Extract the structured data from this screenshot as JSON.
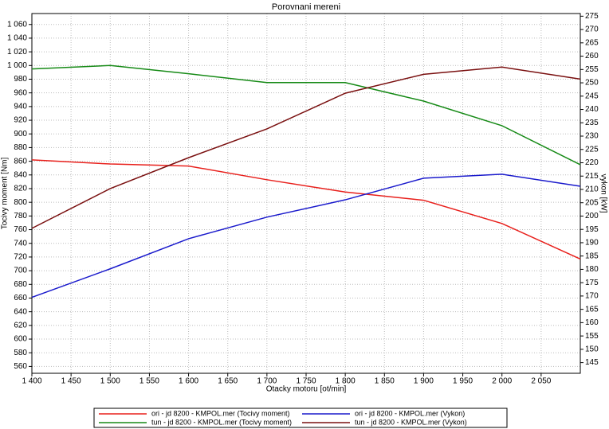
{
  "chart_data": {
    "type": "line",
    "title": "Porovnani mereni",
    "xlabel": "Otacky motoru [ot/min]",
    "ylabel": "Tocivy moment [Nm]",
    "y2label": "vykon [kW]",
    "x": [
      1400,
      1500,
      1600,
      1700,
      1800,
      1900,
      2000,
      2100
    ],
    "xlim": [
      1400,
      2100
    ],
    "xticks": [
      {
        "value": 1400,
        "label": "1 400"
      },
      {
        "value": 1450,
        "label": "1 450"
      },
      {
        "value": 1500,
        "label": "1 500"
      },
      {
        "value": 1550,
        "label": "1 550"
      },
      {
        "value": 1600,
        "label": "1 600"
      },
      {
        "value": 1650,
        "label": "1 650"
      },
      {
        "value": 1700,
        "label": "1 700"
      },
      {
        "value": 1750,
        "label": "1 750"
      },
      {
        "value": 1800,
        "label": "1 800"
      },
      {
        "value": 1850,
        "label": "1 850"
      },
      {
        "value": 1900,
        "label": "1 900"
      },
      {
        "value": 1950,
        "label": "1 950"
      },
      {
        "value": 2000,
        "label": "2 000"
      },
      {
        "value": 2050,
        "label": "2 050"
      }
    ],
    "ylim": [
      550,
      1076
    ],
    "yticks": [
      560,
      580,
      600,
      620,
      640,
      660,
      680,
      700,
      720,
      740,
      760,
      780,
      800,
      820,
      840,
      860,
      880,
      900,
      920,
      940,
      960,
      980,
      {
        "value": 1000,
        "label": "1 000"
      },
      {
        "value": 1020,
        "label": "1 020"
      },
      {
        "value": 1040,
        "label": "1 040"
      },
      {
        "value": 1060,
        "label": "1 060"
      }
    ],
    "y2lim": [
      141,
      276
    ],
    "y2ticks": [
      145,
      150,
      155,
      160,
      165,
      170,
      175,
      180,
      185,
      190,
      195,
      200,
      205,
      210,
      215,
      220,
      225,
      230,
      235,
      240,
      245,
      250,
      255,
      260,
      265,
      270,
      275
    ],
    "grid": true,
    "series": [
      {
        "name": "ori - jd 8200 - KMPOL.mer  (Tocivy moment)",
        "color": "#e8201c",
        "values": [
          862,
          856,
          853,
          833,
          815,
          803,
          769,
          717
        ]
      },
      {
        "name": "ori - jd 8200 - KMPOL.mer  (Vykon)",
        "color": "#1a1acc",
        "axis": "y2",
        "values": [
          169.5,
          180.2,
          191.5,
          199.6,
          206.1,
          214.2,
          215.7,
          211.2
        ]
      },
      {
        "name": "tun - jd 8200 - KMPOL.mer  (Tocivy moment)",
        "color": "#168a16",
        "values": [
          995,
          1000,
          988,
          975,
          975,
          948,
          912,
          855
        ]
      },
      {
        "name": "tun - jd 8200 - KMPOL.mer  (Vykon)",
        "color": "#7a1010",
        "axis": "y2",
        "values": [
          195.4,
          210.3,
          221.9,
          232.7,
          246.1,
          253.2,
          255.9,
          251.4
        ]
      }
    ]
  }
}
